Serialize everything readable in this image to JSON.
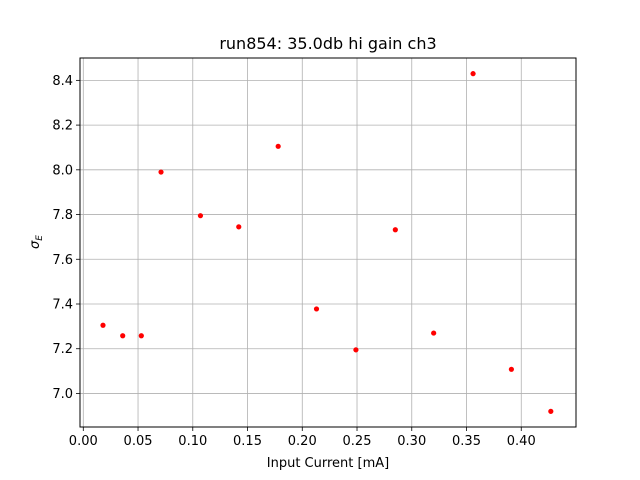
{
  "chart_data": {
    "type": "scatter",
    "title": "run854: 35.0db hi gain ch3",
    "xlabel": "Input Current [mA]",
    "ylabel_symbol": "σ",
    "ylabel_subscript": "E",
    "xlim": [
      -0.003,
      0.45
    ],
    "ylim": [
      6.85,
      8.5
    ],
    "xticks": [
      0.0,
      0.05,
      0.1,
      0.15,
      0.2,
      0.25,
      0.3,
      0.35,
      0.4
    ],
    "xtick_labels": [
      "0.00",
      "0.05",
      "0.10",
      "0.15",
      "0.20",
      "0.25",
      "0.30",
      "0.35",
      "0.40"
    ],
    "yticks": [
      7.0,
      7.2,
      7.4,
      7.6,
      7.8,
      8.0,
      8.2,
      8.4
    ],
    "ytick_labels": [
      "7.0",
      "7.2",
      "7.4",
      "7.6",
      "7.8",
      "8.0",
      "8.2",
      "8.4"
    ],
    "grid": true,
    "marker_color": "#ff0000",
    "points": [
      {
        "x": 0.018,
        "y": 7.305
      },
      {
        "x": 0.036,
        "y": 7.258
      },
      {
        "x": 0.053,
        "y": 7.258
      },
      {
        "x": 0.071,
        "y": 7.99
      },
      {
        "x": 0.107,
        "y": 7.795
      },
      {
        "x": 0.142,
        "y": 7.745
      },
      {
        "x": 0.178,
        "y": 8.105
      },
      {
        "x": 0.213,
        "y": 7.378
      },
      {
        "x": 0.249,
        "y": 7.195
      },
      {
        "x": 0.285,
        "y": 7.732
      },
      {
        "x": 0.32,
        "y": 7.27
      },
      {
        "x": 0.356,
        "y": 8.43
      },
      {
        "x": 0.391,
        "y": 7.108
      },
      {
        "x": 0.427,
        "y": 6.92
      }
    ]
  }
}
